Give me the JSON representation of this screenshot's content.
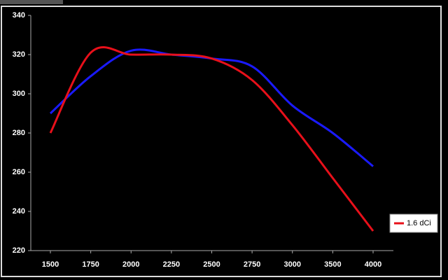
{
  "chart_data": {
    "type": "line",
    "categories": [
      "1500",
      "1750",
      "2000",
      "2250",
      "2500",
      "2750",
      "3000",
      "3500",
      "4000"
    ],
    "series": [
      {
        "color": "#1a1aff",
        "values": [
          290,
          309,
          322,
          320,
          318,
          314,
          294,
          280,
          263
        ]
      },
      {
        "name": "1.6 dCi",
        "color": "#e8101a",
        "values": [
          280,
          321,
          320,
          320,
          318,
          307,
          284,
          257,
          230
        ]
      }
    ],
    "ylim": [
      220,
      340
    ],
    "yticks": [
      220,
      240,
      260,
      280,
      300,
      320,
      340
    ],
    "legend": "right"
  }
}
